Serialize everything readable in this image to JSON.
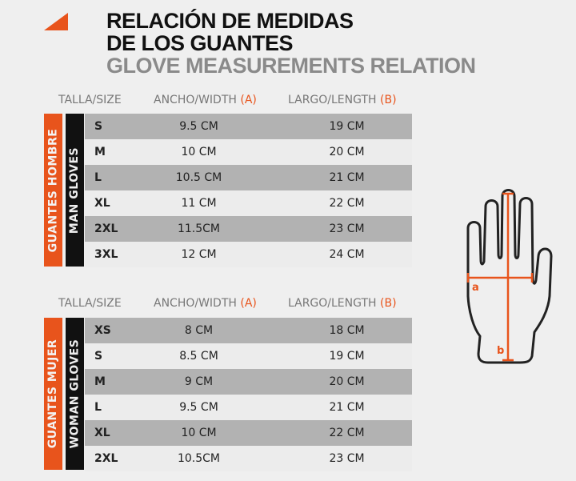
{
  "title": {
    "line1": "RELACIÓN DE MEDIDAS",
    "line2": "DE LOS GUANTES",
    "line3": "GLOVE MEASUREMENTS RELATION"
  },
  "accent": "#e8541c",
  "headers": {
    "size": "TALLA/SIZE",
    "width": "ANCHO/WIDTH",
    "width_mark": "(A)",
    "length": "LARGO/LENGTH",
    "length_mark": "(B)"
  },
  "men": {
    "label_es": "GUANTES HOMBRE",
    "label_en": "MAN GLOVES",
    "rows": [
      {
        "size": "S",
        "width": "9.5 CM",
        "length": "19 CM"
      },
      {
        "size": "M",
        "width": "10 CM",
        "length": "20 CM"
      },
      {
        "size": "L",
        "width": "10.5 CM",
        "length": "21 CM"
      },
      {
        "size": "XL",
        "width": "11 CM",
        "length": "22 CM"
      },
      {
        "size": "2XL",
        "width": "11.5CM",
        "length": "23 CM"
      },
      {
        "size": "3XL",
        "width": "12 CM",
        "length": "24 CM"
      }
    ]
  },
  "women": {
    "label_es": "GUANTES MUJER",
    "label_en": "WOMAN GLOVES",
    "rows": [
      {
        "size": "XS",
        "width": "8 CM",
        "length": "18 CM"
      },
      {
        "size": "S",
        "width": "8.5 CM",
        "length": "19 CM"
      },
      {
        "size": "M",
        "width": "9 CM",
        "length": "20 CM"
      },
      {
        "size": "L",
        "width": "9.5 CM",
        "length": "21 CM"
      },
      {
        "size": "XL",
        "width": "10 CM",
        "length": "22 CM"
      },
      {
        "size": "2XL",
        "width": "10.5CM",
        "length": "23 CM"
      }
    ]
  },
  "diagram": {
    "label_a": "a",
    "label_b": "b"
  }
}
